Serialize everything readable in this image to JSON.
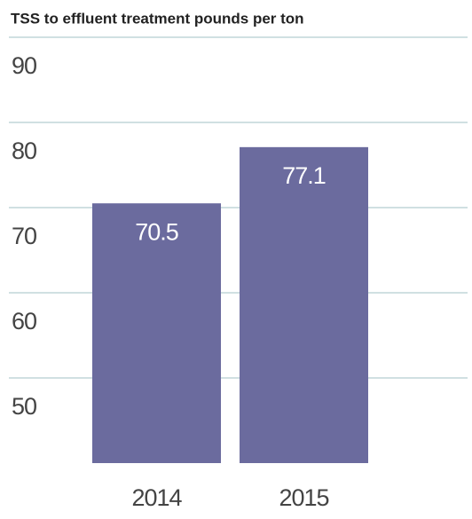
{
  "chart_data": {
    "type": "bar",
    "title": "TSS to effluent treatment pounds per ton",
    "categories": [
      "2014",
      "2015"
    ],
    "values": [
      70.5,
      77.1
    ],
    "color": "#6b6b9e",
    "ylim": [
      40,
      90
    ],
    "yticks": [
      50,
      60,
      70,
      80,
      90
    ],
    "grid": true
  }
}
